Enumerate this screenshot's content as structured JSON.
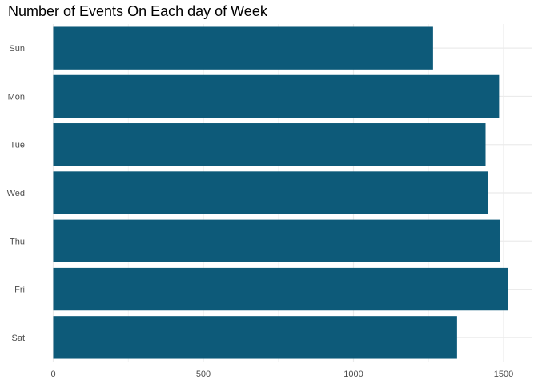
{
  "chart_data": {
    "type": "bar",
    "orientation": "horizontal",
    "title": "Number of Events On Each day of Week",
    "xlabel": "",
    "ylabel": "",
    "categories": [
      "Sun",
      "Mon",
      "Tue",
      "Wed",
      "Thu",
      "Fri",
      "Sat"
    ],
    "values": [
      1265,
      1485,
      1440,
      1448,
      1487,
      1515,
      1345
    ],
    "xlim": [
      0,
      1500
    ],
    "x_ticks": [
      0,
      500,
      1000,
      1500
    ],
    "grid": true,
    "bar_color": "#0d5a79"
  }
}
